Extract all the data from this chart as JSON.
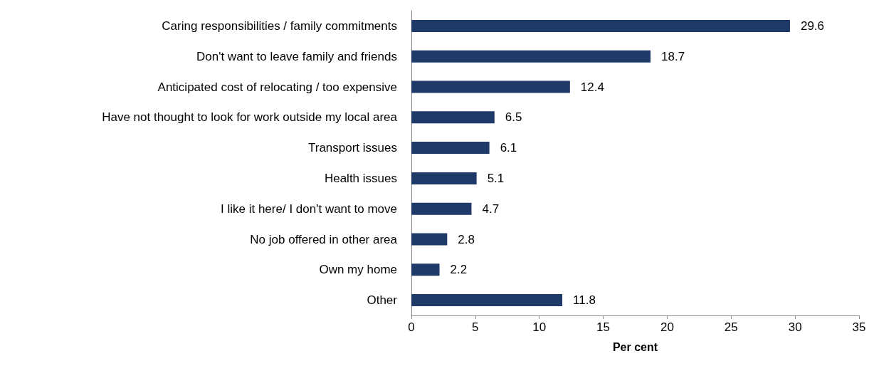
{
  "chart_data": {
    "type": "bar",
    "orientation": "horizontal",
    "xlabel": "Per cent",
    "categories": [
      "Caring responsibilities / family commitments",
      "Don't want to leave family and friends",
      "Anticipated cost of relocating / too expensive",
      "Have not thought to look for work outside my local area",
      "Transport issues",
      "Health issues",
      "I like it here/ I don't want to move",
      "No job offered in other area",
      "Own my home",
      "Other"
    ],
    "values": [
      29.6,
      18.7,
      12.4,
      6.5,
      6.1,
      5.1,
      4.7,
      2.8,
      2.2,
      11.8
    ],
    "color": "#1f3a68",
    "xlim": [
      0,
      35
    ],
    "xticks": [
      0,
      5,
      10,
      15,
      20,
      25,
      30,
      35
    ],
    "grid": false,
    "data_labels": true
  }
}
